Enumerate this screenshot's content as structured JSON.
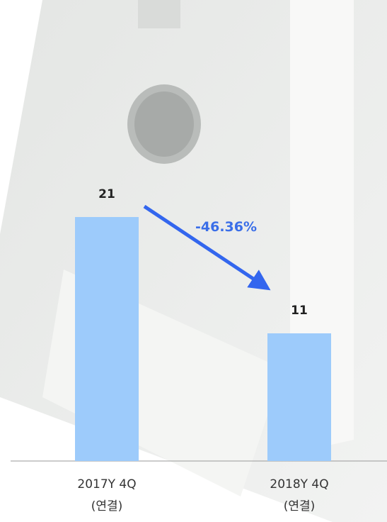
{
  "chart_data": {
    "type": "bar",
    "categories": [
      "2017Y 4Q\n(연결)",
      "2018Y 4Q\n(연결)"
    ],
    "values": [
      21,
      11
    ],
    "color": "#9dcbfb",
    "annotation": "-46.36%"
  }
}
